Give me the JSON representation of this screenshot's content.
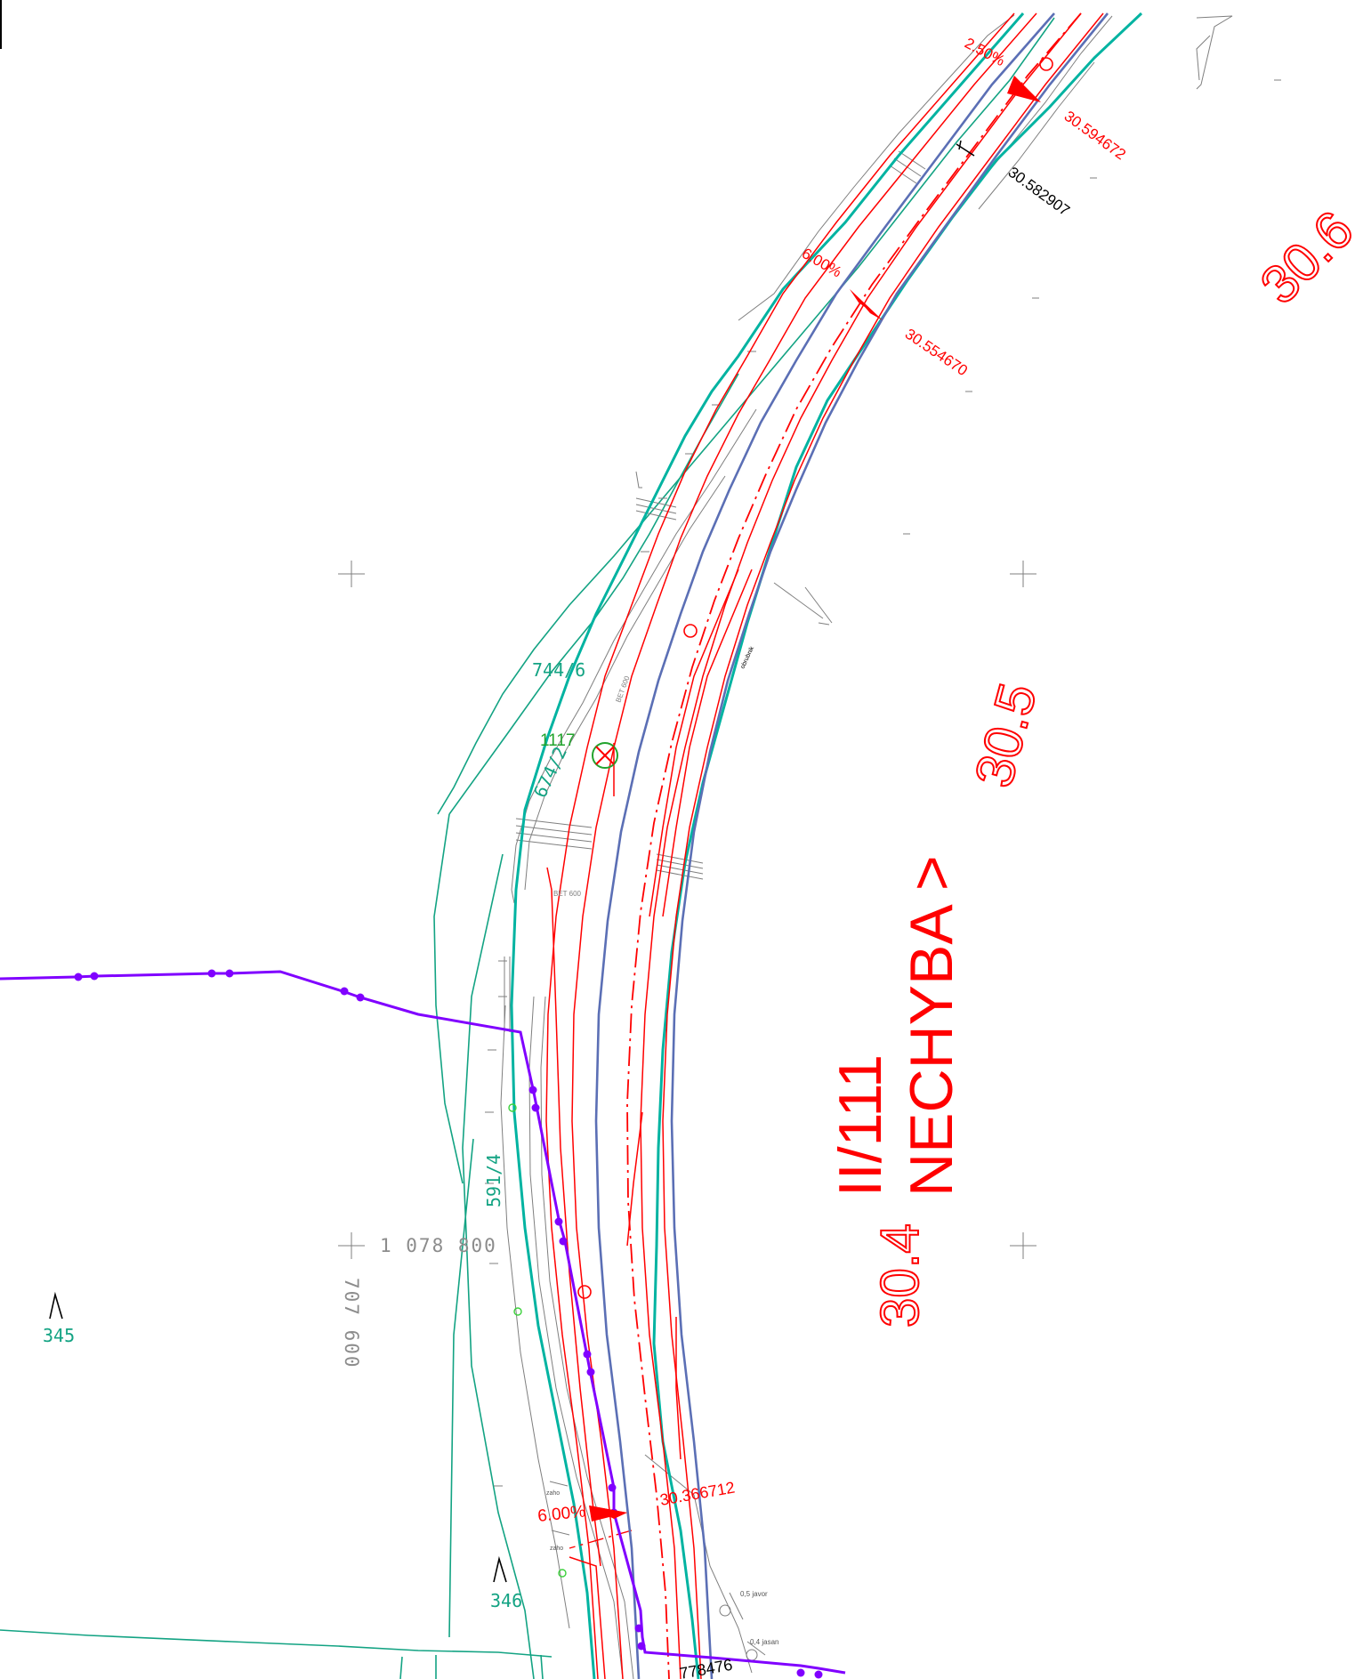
{
  "colors": {
    "road": "#ff0000",
    "boundary": "#00b3a1",
    "parcel": "#13a383",
    "utility": "#8000ff",
    "axis": "#5b6fb5",
    "survey": "#7f7f7f",
    "black": "#000000"
  },
  "road": {
    "name": "II/111",
    "destination": "NECHYBA >"
  },
  "km_labels": {
    "k306": "30.6",
    "k305": "30.5",
    "k304": "30.4"
  },
  "chainage": {
    "c1": "30.594672",
    "c2": "30.582907",
    "c3": "30.554670",
    "c4": "30.366712",
    "c5": "778476"
  },
  "slopes": {
    "s1": "2.50%",
    "s2": "6.00%",
    "s3": "6.00%"
  },
  "parcels": {
    "p1": "744/6",
    "p2": "674/2",
    "p3": "591/4",
    "p4": "345",
    "p5": "346"
  },
  "point_id": "1117",
  "coordinates": {
    "y": "1 078 800",
    "x": "707 600"
  },
  "small_notes": {
    "bet1": "BET 600",
    "bet2": "BET 600",
    "tree1": "0,5 javor",
    "tree2": "0,4 jasan",
    "note1": "zaho",
    "note2": "zaho",
    "note3": "obrubnik"
  }
}
